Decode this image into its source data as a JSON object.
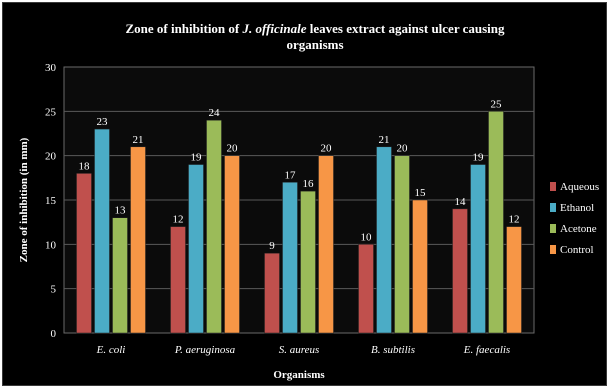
{
  "chart_data": {
    "type": "bar",
    "title_prefix": "Zone of inhibition of ",
    "title_species": "J. officinale",
    "title_suffix": " leaves extract against ulcer causing",
    "title_line2": "organisms",
    "xlabel": "Organisms",
    "ylabel": "Zone of inhibition (in mm)",
    "categories": [
      "E. coli",
      "P. aeruginosa",
      "S. aureus",
      "B. subtilis",
      "E. faecalis"
    ],
    "ylim": [
      0,
      30
    ],
    "yticks": [
      0,
      5,
      10,
      15,
      20,
      25,
      30
    ],
    "grid": true,
    "legend_position": "right",
    "series": [
      {
        "name": "Aqueous",
        "values": [
          18,
          12,
          9,
          10,
          14
        ],
        "color": "#c0504d"
      },
      {
        "name": "Ethanol",
        "values": [
          23,
          19,
          17,
          21,
          19
        ],
        "color": "#4bacc6"
      },
      {
        "name": "Acetone",
        "values": [
          13,
          24,
          16,
          20,
          25
        ],
        "color": "#9bbb59"
      },
      {
        "name": "Control",
        "values": [
          21,
          20,
          20,
          15,
          12
        ],
        "color": "#f79646"
      }
    ]
  }
}
